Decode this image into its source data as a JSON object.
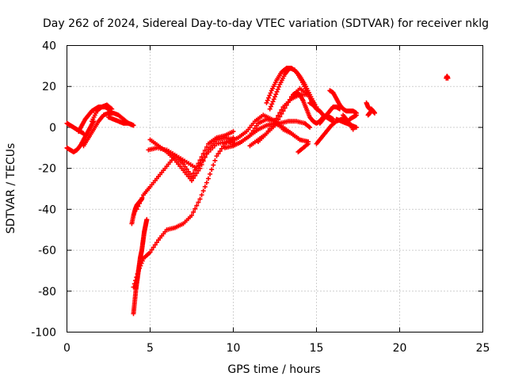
{
  "chart_data": {
    "type": "scatter",
    "title": "Day 262 of 2024, Sidereal Day-to-day VTEC variation (SDTVAR) for receiver nklg",
    "xlabel": "GPS time / hours",
    "ylabel": "SDTVAR / TECUs",
    "xlim": [
      0,
      25
    ],
    "ylim": [
      -100,
      40
    ],
    "xticks": [
      "0",
      "5",
      "10",
      "15",
      "20",
      "25"
    ],
    "yticks": [
      "-100",
      "-80",
      "-60",
      "-40",
      "-20",
      "0",
      "20",
      "40"
    ],
    "grid": true,
    "marker": "plus",
    "color": "#ff0000",
    "series": [
      {
        "x": [
          0.0,
          0.2,
          0.4,
          0.6,
          0.8,
          1.0
        ],
        "y": [
          2,
          1,
          0,
          -1,
          -2,
          -3
        ]
      },
      {
        "x": [
          0.0,
          0.2,
          0.4,
          0.6,
          0.8,
          1.0,
          1.2,
          1.4,
          1.6
        ],
        "y": [
          -10,
          -11,
          -12,
          -11,
          -9,
          -6,
          -3,
          0,
          3
        ]
      },
      {
        "x": [
          0.7,
          0.9,
          1.1,
          1.3,
          1.5,
          1.7,
          1.9,
          2.1,
          2.3,
          2.5,
          2.7
        ],
        "y": [
          -2,
          1,
          4,
          6,
          8,
          9,
          10,
          10,
          10,
          9,
          7
        ]
      },
      {
        "x": [
          1.0,
          1.3,
          1.6,
          1.9,
          2.2,
          2.5,
          2.8,
          3.1,
          3.4,
          3.7,
          4.0
        ],
        "y": [
          -9,
          -5,
          -1,
          3,
          6,
          7,
          7,
          6,
          4,
          2,
          1
        ]
      },
      {
        "x": [
          1.5,
          1.8,
          2.1,
          2.4,
          2.7
        ],
        "y": [
          3,
          8,
          10,
          11,
          9
        ]
      },
      {
        "x": [
          2.5,
          2.8,
          3.1,
          3.4,
          3.7,
          4.0
        ],
        "y": [
          5,
          4,
          3,
          2,
          2,
          1
        ]
      },
      {
        "x": [
          3.9,
          4.0,
          4.1,
          4.2,
          4.3,
          4.4,
          4.5
        ],
        "y": [
          -47,
          -43,
          -40,
          -38,
          -37,
          -36,
          -35
        ]
      },
      {
        "x": [
          4.0,
          4.05,
          4.1,
          4.15,
          4.2,
          4.25,
          4.3,
          4.35,
          4.4,
          4.45,
          4.5,
          4.55,
          4.6,
          4.65,
          4.7,
          4.75,
          4.8
        ],
        "y": [
          -91,
          -87,
          -83,
          -79,
          -76,
          -73,
          -70,
          -67,
          -64,
          -62,
          -60,
          -57,
          -54,
          -51,
          -49,
          -47,
          -45
        ]
      },
      {
        "x": [
          4.0,
          4.3,
          4.6,
          5.0,
          5.5,
          6.0,
          6.5,
          7.0,
          7.5,
          8.0,
          8.5,
          9.0,
          9.5,
          10.0
        ],
        "y": [
          -78,
          -70,
          -64,
          -61,
          -55,
          -50,
          -49,
          -47,
          -43,
          -35,
          -25,
          -14,
          -8,
          -5
        ]
      },
      {
        "x": [
          4.2,
          4.6,
          5.0,
          5.5,
          6.0,
          6.5,
          7.0,
          7.5,
          8.0,
          8.5,
          9.0,
          9.5,
          10.0
        ],
        "y": [
          -40,
          -33,
          -29,
          -24,
          -19,
          -14,
          -18,
          -24,
          -16,
          -8,
          -5,
          -4,
          -2
        ]
      },
      {
        "x": [
          5.0,
          5.5,
          6.0,
          6.5,
          7.0,
          7.5,
          8.0,
          8.5,
          9.0,
          9.5,
          10.0
        ],
        "y": [
          -6,
          -9,
          -12,
          -16,
          -21,
          -26,
          -20,
          -11,
          -6,
          -5,
          -6
        ]
      },
      {
        "x": [
          4.9,
          5.4,
          6.0,
          6.6,
          7.2,
          7.8,
          8.4,
          9.0,
          9.6,
          10.2
        ],
        "y": [
          -11,
          -10,
          -11,
          -14,
          -17,
          -20,
          -13,
          -8,
          -7,
          -8
        ]
      },
      {
        "x": [
          9.5,
          10.0,
          10.5,
          11.0,
          11.5,
          12.0,
          12.5,
          13.0,
          13.5,
          14.0,
          14.5
        ],
        "y": [
          -10,
          -9,
          -7,
          -4,
          -1,
          1,
          2,
          0,
          -3,
          -6,
          -7
        ]
      },
      {
        "x": [
          10.0,
          10.5,
          11.0,
          11.5,
          12.0,
          12.5,
          13.0,
          13.5,
          14.0,
          14.5
        ],
        "y": [
          -9,
          -7,
          -4,
          2,
          4,
          3,
          -1,
          -3,
          -6,
          -7
        ]
      },
      {
        "x": [
          9.8,
          10.3,
          10.8,
          11.3,
          11.8,
          12.3,
          12.8,
          13.3,
          13.8,
          14.3,
          14.6
        ],
        "y": [
          -7,
          -5,
          -2,
          3,
          6,
          4,
          2,
          3,
          3,
          2,
          0
        ]
      },
      {
        "x": [
          11.0,
          11.5,
          12.0,
          12.5,
          13.0,
          13.5,
          14.0,
          14.5
        ],
        "y": [
          -9,
          -6,
          -3,
          1,
          8,
          15,
          19,
          16
        ]
      },
      {
        "x": [
          11.5,
          12.0,
          12.5,
          13.0,
          13.5,
          14.0,
          14.5,
          15.0
        ],
        "y": [
          -7,
          -3,
          3,
          10,
          14,
          16,
          16,
          10
        ]
      },
      {
        "x": [
          12.0,
          12.3,
          12.6,
          12.9,
          13.2,
          13.5,
          13.8,
          14.1,
          14.4,
          14.7
        ],
        "y": [
          12,
          18,
          23,
          27,
          29,
          29,
          27,
          23,
          18,
          13
        ]
      },
      {
        "x": [
          12.2,
          12.5,
          12.8,
          13.1,
          13.4,
          13.7,
          14.0,
          14.3,
          14.6,
          14.9
        ],
        "y": [
          9,
          15,
          21,
          26,
          29,
          28,
          25,
          21,
          16,
          11
        ]
      },
      {
        "x": [
          13.6,
          13.8,
          14.0,
          14.2,
          14.4,
          14.6,
          14.8,
          15.0,
          15.2,
          15.4,
          15.6,
          15.8,
          16.0
        ],
        "y": [
          16,
          17,
          16,
          13,
          9,
          5,
          3,
          2,
          3,
          5,
          6,
          5,
          4
        ]
      },
      {
        "x": [
          13.9,
          14.2,
          14.5
        ],
        "y": [
          -12,
          -10,
          -8
        ]
      },
      {
        "x": [
          14.6,
          14.8,
          15.0,
          15.2,
          15.4,
          15.6,
          15.8,
          16.0
        ],
        "y": [
          12,
          11,
          9,
          8,
          6,
          5,
          4,
          3
        ]
      },
      {
        "x": [
          15.0,
          15.3,
          15.6,
          15.9,
          16.2,
          16.5,
          16.8,
          17.1
        ],
        "y": [
          -8,
          -5,
          -2,
          1,
          3,
          4,
          3,
          1
        ]
      },
      {
        "x": [
          15.2,
          15.4,
          15.6,
          15.8,
          16.0,
          16.2,
          16.4
        ],
        "y": [
          2,
          4,
          6,
          8,
          10,
          10,
          9
        ]
      },
      {
        "x": [
          15.8,
          16.0,
          16.2,
          16.4,
          16.6,
          16.8,
          17.0,
          17.2,
          17.4
        ],
        "y": [
          18,
          17,
          14,
          11,
          9,
          8,
          8,
          8,
          7
        ]
      },
      {
        "x": [
          16.2,
          16.5,
          16.8,
          17.1,
          17.4
        ],
        "y": [
          4,
          3,
          2,
          1,
          0
        ]
      },
      {
        "x": [
          16.6,
          16.9,
          17.2
        ],
        "y": [
          6,
          3,
          -1
        ]
      },
      {
        "x": [
          17.0,
          17.2,
          17.4
        ],
        "y": [
          4,
          5,
          6
        ]
      },
      {
        "x": [
          18.0,
          18.1,
          18.2,
          18.3,
          18.4,
          18.5
        ],
        "y": [
          12,
          10,
          9,
          9,
          8,
          7
        ]
      },
      {
        "x": [
          18.1,
          18.2,
          18.3
        ],
        "y": [
          6,
          7,
          8
        ]
      },
      {
        "x": [
          22.8,
          22.85,
          22.9
        ],
        "y": [
          24,
          25,
          24
        ]
      }
    ]
  }
}
